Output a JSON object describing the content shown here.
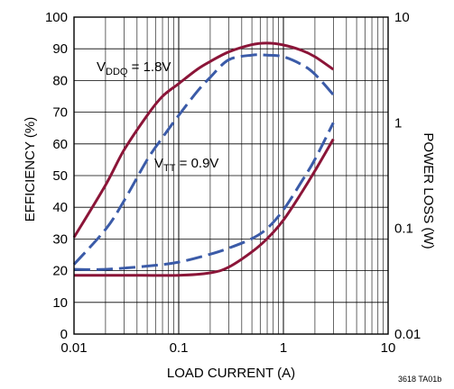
{
  "chart_data": {
    "type": "line",
    "title": "",
    "xlabel": "LOAD CURRENT (A)",
    "ylabel_left": "EFFICIENCY (%)",
    "ylabel_right": "POWER LOSS (W)",
    "x_scale": "log",
    "xlim": [
      0.01,
      10
    ],
    "ylim_left": [
      0,
      100
    ],
    "y2_scale": "log",
    "ylim_right": [
      0.01,
      10
    ],
    "grid": true,
    "x_tick_labels": [
      "0.01",
      "0.1",
      "1",
      "10"
    ],
    "y_left_tick_labels": [
      "0",
      "10",
      "20",
      "30",
      "40",
      "50",
      "60",
      "70",
      "80",
      "90",
      "100"
    ],
    "y_right_tick_labels": [
      "0.01",
      "0.1",
      "1",
      "10"
    ],
    "annotations": {
      "vddq": {
        "main": "V",
        "sub": "DDQ",
        "rest": " = 1.8V"
      },
      "vtt": {
        "main": "V",
        "sub": "TT",
        "rest": " = 0.9V"
      }
    },
    "reference": "3618 TA01b",
    "colors": {
      "solid_series": "#8b1538",
      "dashed_series": "#3b5ba8"
    },
    "series": [
      {
        "style": "solid",
        "axis": "left",
        "kind": "efficiency",
        "x": [
          0.01,
          0.02,
          0.03,
          0.05,
          0.07,
          0.1,
          0.15,
          0.2,
          0.3,
          0.5,
          0.7,
          1,
          1.5,
          2,
          3
        ],
        "y": [
          30.5,
          47,
          58,
          69,
          75,
          79,
          83.5,
          86,
          89,
          91.3,
          91.8,
          91.2,
          89.5,
          87.5,
          83.5
        ]
      },
      {
        "style": "dashed",
        "axis": "left",
        "kind": "efficiency",
        "x": [
          0.01,
          0.02,
          0.03,
          0.05,
          0.07,
          0.1,
          0.15,
          0.2,
          0.3,
          0.5,
          0.7,
          1,
          1.5,
          2,
          3
        ],
        "y": [
          22,
          33,
          42,
          55,
          62,
          69,
          76.5,
          81,
          86.5,
          88,
          88,
          87.5,
          85,
          82,
          75.5
        ]
      },
      {
        "style": "solid",
        "axis": "right",
        "kind": "power_loss",
        "x": [
          0.01,
          0.03,
          0.1,
          0.2,
          0.3,
          0.5,
          0.7,
          1,
          1.5,
          2,
          3
        ],
        "y": [
          0.036,
          0.036,
          0.036,
          0.038,
          0.043,
          0.06,
          0.08,
          0.12,
          0.22,
          0.35,
          0.7
        ]
      },
      {
        "style": "dashed",
        "axis": "right",
        "kind": "power_loss",
        "x": [
          0.01,
          0.02,
          0.05,
          0.1,
          0.2,
          0.3,
          0.5,
          0.7,
          1,
          1.5,
          2,
          3
        ],
        "y": [
          0.041,
          0.041,
          0.044,
          0.048,
          0.057,
          0.065,
          0.08,
          0.1,
          0.15,
          0.28,
          0.45,
          1.0
        ]
      }
    ]
  }
}
